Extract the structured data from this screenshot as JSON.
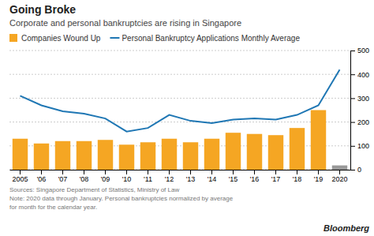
{
  "chart_data": {
    "type": "bar",
    "title": "Going Broke",
    "subtitle": "Corporate and personal bankruptcies are rising in Singapore",
    "categories": [
      "2005",
      "'06",
      "'07",
      "'08",
      "'09",
      "'10",
      "'11",
      "'12",
      "'13",
      "'14",
      "'15",
      "'16",
      "'17",
      "'18",
      "'19",
      "2020"
    ],
    "series": [
      {
        "name": "Companies Wound Up",
        "type": "bar",
        "colors": [
          "#f5a623",
          "#f5a623",
          "#f5a623",
          "#f5a623",
          "#f5a623",
          "#f5a623",
          "#f5a623",
          "#f5a623",
          "#f5a623",
          "#f5a623",
          "#f5a623",
          "#f5a623",
          "#f5a623",
          "#f5a623",
          "#f5a623",
          "#999999"
        ],
        "values": [
          130,
          110,
          120,
          120,
          125,
          105,
          115,
          130,
          115,
          130,
          155,
          150,
          145,
          175,
          250,
          18
        ]
      },
      {
        "name": "Personal Bankruptcy Applications Monthly Average",
        "type": "line",
        "values": [
          310,
          270,
          245,
          235,
          215,
          160,
          175,
          230,
          205,
          195,
          210,
          215,
          210,
          230,
          270,
          420
        ]
      }
    ],
    "ylim": [
      0,
      500
    ],
    "yticks": [
      0,
      100,
      200,
      300,
      400,
      500
    ],
    "grid": true,
    "legend": "top-left",
    "annotations": [
      "Sources: Singapore Department of Statistics, Ministry of Law",
      "Note: 2020 data through January. Personal bankruptcies normalized by average",
      "for month for the calendar year.",
      "Bloomberg"
    ]
  }
}
